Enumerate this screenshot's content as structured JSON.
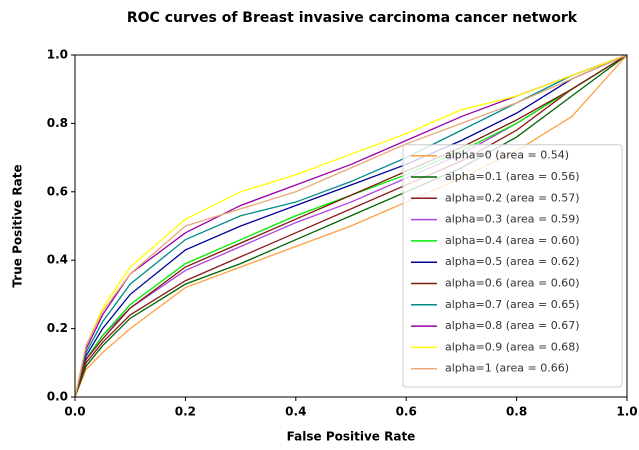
{
  "chart_data": {
    "type": "line",
    "title": "ROC curves of Breast invasive carcinoma cancer network",
    "xlabel": "False Positive Rate",
    "ylabel": "True Positive Rate",
    "x": [
      0,
      0.02,
      0.05,
      0.1,
      0.2,
      0.3,
      0.4,
      0.5,
      0.6,
      0.7,
      0.8,
      0.9,
      1.0
    ],
    "series": [
      {
        "name": "alpha=0 (area = 0.54)",
        "color": "#ffa040",
        "values": [
          0,
          0.08,
          0.13,
          0.2,
          0.32,
          0.38,
          0.44,
          0.5,
          0.57,
          0.64,
          0.72,
          0.82,
          1
        ]
      },
      {
        "name": "alpha=0.1 (area = 0.56)",
        "color": "#006400",
        "values": [
          0,
          0.09,
          0.15,
          0.23,
          0.33,
          0.39,
          0.46,
          0.53,
          0.6,
          0.67,
          0.76,
          0.88,
          1
        ]
      },
      {
        "name": "alpha=0.2 (area = 0.57)",
        "color": "#8b1a1a",
        "values": [
          0,
          0.1,
          0.16,
          0.24,
          0.34,
          0.41,
          0.48,
          0.55,
          0.62,
          0.69,
          0.78,
          0.9,
          1
        ]
      },
      {
        "name": "alpha=0.3 (area = 0.59)",
        "color": "#b040e0",
        "values": [
          0,
          0.11,
          0.18,
          0.26,
          0.37,
          0.44,
          0.51,
          0.57,
          0.64,
          0.71,
          0.8,
          0.9,
          1
        ]
      },
      {
        "name": "alpha=0.4 (area = 0.60)",
        "color": "#00ee00",
        "values": [
          0,
          0.11,
          0.18,
          0.27,
          0.39,
          0.46,
          0.53,
          0.59,
          0.65,
          0.72,
          0.8,
          0.9,
          1
        ]
      },
      {
        "name": "alpha=0.5 (area = 0.62)",
        "color": "#000099",
        "values": [
          0,
          0.12,
          0.2,
          0.3,
          0.43,
          0.5,
          0.56,
          0.62,
          0.68,
          0.75,
          0.83,
          0.93,
          1
        ]
      },
      {
        "name": "alpha=0.6 (area = 0.60)",
        "color": "#7a1a0a",
        "values": [
          0,
          0.11,
          0.17,
          0.26,
          0.38,
          0.45,
          0.52,
          0.59,
          0.66,
          0.73,
          0.81,
          0.9,
          1
        ]
      },
      {
        "name": "alpha=0.7 (area = 0.65)",
        "color": "#008b8b",
        "values": [
          0,
          0.13,
          0.22,
          0.33,
          0.46,
          0.53,
          0.57,
          0.63,
          0.7,
          0.78,
          0.86,
          0.94,
          1
        ]
      },
      {
        "name": "alpha=0.8 (area = 0.67)",
        "color": "#9900aa",
        "values": [
          0,
          0.14,
          0.24,
          0.36,
          0.48,
          0.56,
          0.62,
          0.68,
          0.75,
          0.82,
          0.88,
          0.94,
          1
        ]
      },
      {
        "name": "alpha=0.9 (area = 0.68)",
        "color": "#ffff00",
        "values": [
          0,
          0.15,
          0.26,
          0.38,
          0.52,
          0.6,
          0.65,
          0.71,
          0.77,
          0.84,
          0.88,
          0.94,
          1
        ]
      },
      {
        "name": "alpha=1 (area = 0.66)",
        "color": "#e8a878",
        "values": [
          0,
          0.15,
          0.25,
          0.36,
          0.5,
          0.55,
          0.6,
          0.67,
          0.74,
          0.8,
          0.86,
          0.93,
          1
        ]
      }
    ],
    "xlim": [
      0,
      1
    ],
    "ylim": [
      0,
      1
    ],
    "xticks": [
      {
        "value": 0,
        "label": "0.0"
      },
      0.2,
      0.4,
      0.6,
      0.8,
      {
        "value": 1,
        "label": "1.0"
      }
    ],
    "yticks": [
      {
        "value": 0,
        "label": "0.0"
      },
      0.2,
      0.4,
      0.6,
      0.8,
      {
        "value": 1,
        "label": "1.0"
      }
    ],
    "legend": "lower right"
  }
}
